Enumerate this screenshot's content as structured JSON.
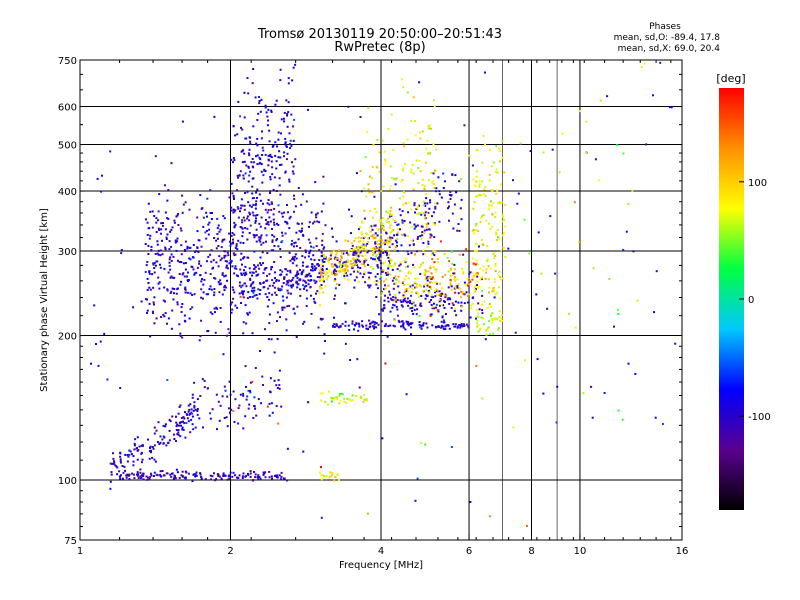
{
  "header": {
    "title": "Tromsø 20130119 20:50:00–20:51:43",
    "subtitle": "RwPretec (8p)"
  },
  "phase_stats": {
    "heading": "Phases",
    "line_o": "mean, sd,O: -89.4, 17.8",
    "line_x": "mean, sd,X:  69.0, 20.4"
  },
  "chart_data": {
    "type": "scatter",
    "title": "Tromsø 20130119 20:50:00–20:51:43",
    "subtitle": "RwPretec (8p)",
    "xlabel": "Frequency [MHz]",
    "ylabel": "Stationary phase Virtual Height [km]",
    "x_scale": "log",
    "y_scale": "log",
    "xlim": [
      1,
      16
    ],
    "ylim": [
      75,
      750
    ],
    "x_ticks": [
      1,
      2,
      4,
      6,
      8,
      10,
      16
    ],
    "x_tick_labels": [
      "1",
      "2",
      "4",
      "6",
      "8",
      "10",
      "16"
    ],
    "x_gridlines": [
      2,
      4,
      6,
      8,
      10
    ],
    "x_minor_gridlines": [
      7,
      9
    ],
    "y_ticks": [
      75,
      100,
      200,
      300,
      400,
      500,
      600,
      750
    ],
    "y_tick_labels": [
      "75",
      "100",
      "200",
      "300",
      "400",
      "500",
      "600",
      "750"
    ],
    "y_gridlines": [
      100,
      200,
      300,
      400,
      500,
      600
    ],
    "grid": true,
    "colorbar": {
      "label": "[deg]",
      "range": [
        -180,
        180
      ],
      "ticks": [
        100,
        0,
        -100
      ],
      "tick_labels": [
        "100",
        "0",
        "-100"
      ],
      "colors": [
        "#000000",
        "#5a0090",
        "#0000ff",
        "#00c8ff",
        "#00ff40",
        "#ffff00",
        "#ff9000",
        "#ff0000"
      ]
    },
    "series": [
      {
        "phase": -100,
        "f_from": 1.15,
        "f_to": 1.7,
        "h": 120,
        "hs": 0.04,
        "n": 140,
        "slope": 0.55
      },
      {
        "phase": -110,
        "f_from": 1.2,
        "f_to": 2.6,
        "h": 102,
        "hs": 0.012,
        "n": 160,
        "slope": 0
      },
      {
        "phase": -100,
        "f_from": 1.6,
        "f_to": 2.55,
        "h": 145,
        "hs": 0.06,
        "n": 90,
        "slope": 0.2
      },
      {
        "phase": -100,
        "f_from": 1.35,
        "f_to": 3.1,
        "h": 285,
        "hs": 0.17,
        "n": 700,
        "slope": 0.1
      },
      {
        "phase": -95,
        "f_from": 2.0,
        "f_to": 2.7,
        "h": 450,
        "hs": 0.2,
        "n": 260,
        "slope": 0.4
      },
      {
        "phase": -100,
        "f_from": 2.1,
        "f_to": 4.0,
        "h": 270,
        "hs": 0.03,
        "n": 160,
        "slope": 0.35
      },
      {
        "phase": -100,
        "f_from": 3.2,
        "f_to": 5.8,
        "h": 320,
        "hs": 0.1,
        "n": 240,
        "slope": 0.7
      },
      {
        "phase": -100,
        "f_from": 4.0,
        "f_to": 6.4,
        "h": 240,
        "hs": 0.07,
        "n": 180,
        "slope": 0
      },
      {
        "phase": -100,
        "f_from": 3.2,
        "f_to": 6.0,
        "h": 210,
        "hs": 0.01,
        "n": 120,
        "slope": 0
      },
      {
        "phase": 95,
        "f_from": 3.0,
        "f_to": 4.2,
        "h": 295,
        "hs": 0.05,
        "n": 200,
        "slope": 0.45
      },
      {
        "phase": 85,
        "f_from": 3.6,
        "f_to": 5.2,
        "h": 390,
        "hs": 0.22,
        "n": 180,
        "slope": 0.3
      },
      {
        "phase": 90,
        "f_from": 4.0,
        "f_to": 6.8,
        "h": 260,
        "hs": 0.06,
        "n": 180,
        "slope": 0
      },
      {
        "phase": 80,
        "f_from": 6.1,
        "f_to": 7.1,
        "h": 350,
        "hs": 0.18,
        "n": 120,
        "slope": 0
      },
      {
        "phase": 70,
        "f_from": 6.2,
        "f_to": 7.0,
        "h": 215,
        "hs": 0.03,
        "n": 40,
        "slope": 0
      },
      {
        "phase": 70,
        "f_from": 3.0,
        "f_to": 3.8,
        "h": 148,
        "hs": 0.02,
        "n": 40,
        "slope": 0
      },
      {
        "phase": 80,
        "f_from": 3.0,
        "f_to": 3.3,
        "h": 102,
        "hs": 0.01,
        "n": 20,
        "slope": 0
      },
      {
        "phase": 160,
        "f_from": 5.0,
        "f_to": 6.5,
        "h": 260,
        "hs": 0.1,
        "n": 30,
        "slope": 0
      },
      {
        "phase": -95,
        "f_from": 1.0,
        "f_to": 16.0,
        "h": 300,
        "hs": 0.6,
        "n": 140,
        "slope": 0
      },
      {
        "phase": 60,
        "f_from": 4.0,
        "f_to": 14.0,
        "h": 350,
        "hs": 0.6,
        "n": 60,
        "slope": 0
      },
      {
        "phase": 160,
        "f_from": 2.0,
        "f_to": 12.0,
        "h": 150,
        "hs": 0.7,
        "n": 18,
        "slope": 0
      }
    ]
  }
}
